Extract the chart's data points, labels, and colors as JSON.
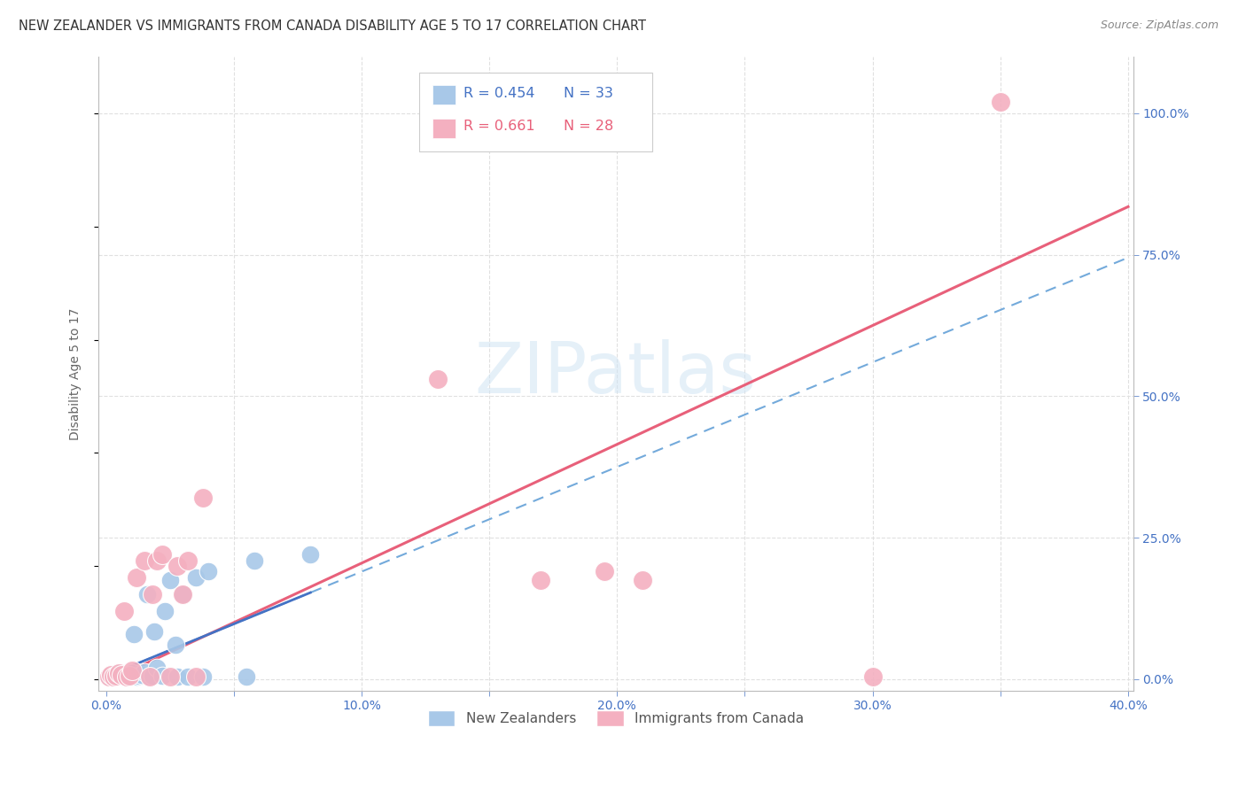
{
  "title": "NEW ZEALANDER VS IMMIGRANTS FROM CANADA DISABILITY AGE 5 TO 17 CORRELATION CHART",
  "source": "Source: ZipAtlas.com",
  "ylabel": "Disability Age 5 to 17",
  "r_nz": 0.454,
  "n_nz": 33,
  "r_ca": 0.661,
  "n_ca": 28,
  "xlim": [
    -0.003,
    0.402
  ],
  "ylim": [
    -0.02,
    1.1
  ],
  "yticks_right": [
    0.0,
    0.25,
    0.5,
    0.75,
    1.0
  ],
  "ytick_labels_right": [
    "0.0%",
    "25.0%",
    "50.0%",
    "75.0%",
    "100.0%"
  ],
  "xtick_vals": [
    0.0,
    0.05,
    0.1,
    0.15,
    0.2,
    0.25,
    0.3,
    0.35,
    0.4
  ],
  "xtick_labels": [
    "0.0%",
    "",
    "10.0%",
    "",
    "20.0%",
    "",
    "30.0%",
    "",
    "40.0%"
  ],
  "color_nz": "#a8c8e8",
  "color_ca": "#f4b0c0",
  "color_nz_line": "#5b9bd5",
  "color_nz_line_dark": "#4472c4",
  "color_ca_line": "#e8607a",
  "watermark_color": "#d0e4f4",
  "grid_color": "#e0e0e0",
  "background_color": "#ffffff",
  "nz_x": [
    0.001,
    0.002,
    0.003,
    0.004,
    0.005,
    0.006,
    0.007,
    0.008,
    0.009,
    0.01,
    0.011,
    0.012,
    0.013,
    0.014,
    0.015,
    0.016,
    0.017,
    0.018,
    0.019,
    0.02,
    0.022,
    0.023,
    0.025,
    0.027,
    0.028,
    0.03,
    0.032,
    0.035,
    0.038,
    0.04,
    0.055,
    0.058,
    0.08
  ],
  "nz_y": [
    0.005,
    0.008,
    0.004,
    0.006,
    0.01,
    0.007,
    0.005,
    0.006,
    0.008,
    0.01,
    0.08,
    0.005,
    0.006,
    0.007,
    0.012,
    0.15,
    0.005,
    0.006,
    0.085,
    0.02,
    0.006,
    0.12,
    0.175,
    0.06,
    0.005,
    0.15,
    0.005,
    0.18,
    0.005,
    0.19,
    0.005,
    0.21,
    0.22
  ],
  "ca_x": [
    0.001,
    0.002,
    0.003,
    0.004,
    0.005,
    0.006,
    0.007,
    0.008,
    0.009,
    0.01,
    0.012,
    0.015,
    0.017,
    0.018,
    0.02,
    0.022,
    0.025,
    0.028,
    0.03,
    0.032,
    0.035,
    0.038,
    0.13,
    0.17,
    0.195,
    0.21,
    0.3,
    0.35
  ],
  "ca_y": [
    0.005,
    0.008,
    0.004,
    0.006,
    0.01,
    0.007,
    0.12,
    0.005,
    0.006,
    0.015,
    0.18,
    0.21,
    0.005,
    0.15,
    0.21,
    0.22,
    0.005,
    0.2,
    0.15,
    0.21,
    0.005,
    0.32,
    0.53,
    0.175,
    0.19,
    0.175,
    0.005,
    1.02
  ],
  "nz_line_slope": 1.85,
  "nz_line_intercept": 0.005,
  "ca_line_slope": 2.1,
  "ca_line_intercept": -0.005
}
